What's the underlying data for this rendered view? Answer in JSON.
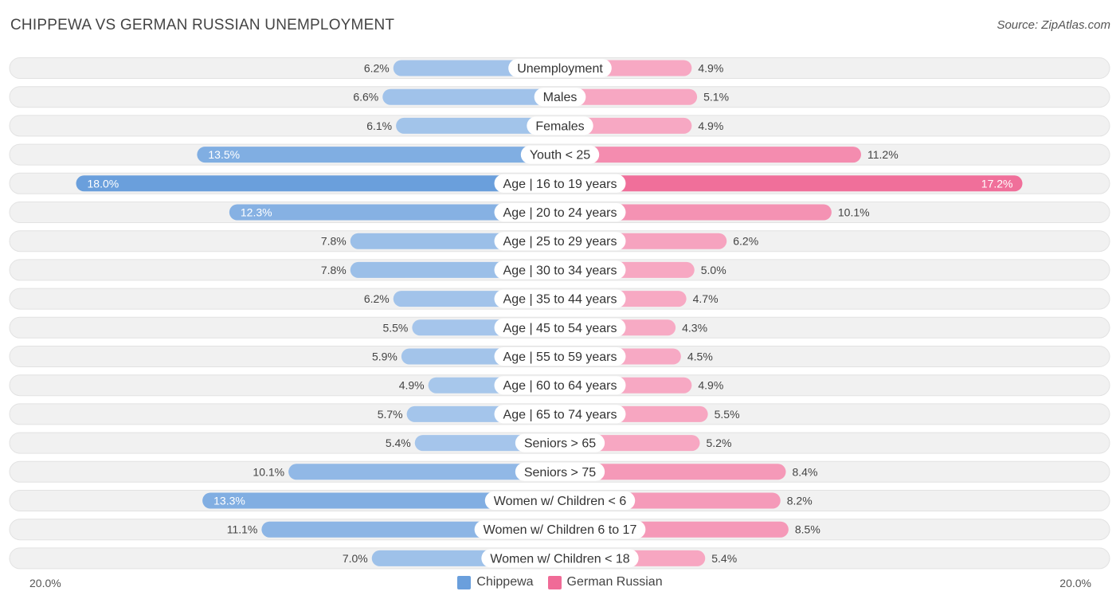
{
  "header": {
    "title": "CHIPPEWA VS GERMAN RUSSIAN UNEMPLOYMENT",
    "source": "Source: ZipAtlas.com"
  },
  "colors": {
    "left_strong": "#6a9fdc",
    "left_light": "#a9c8ec",
    "right_strong": "#f06b97",
    "right_light": "#f7aac4",
    "row_bg": "#f1f1f1",
    "row_border": "#e2e2e2"
  },
  "legend": {
    "left_label": "Chippewa",
    "right_label": "German Russian"
  },
  "axis": {
    "left_label": "20.0%",
    "right_label": "20.0%"
  },
  "chart_data": {
    "type": "bar",
    "orientation": "horizontal-diverging",
    "title": "CHIPPEWA VS GERMAN RUSSIAN UNEMPLOYMENT",
    "xlim": [
      -20,
      20
    ],
    "unit": "%",
    "categories": [
      "Unemployment",
      "Males",
      "Females",
      "Youth < 25",
      "Age | 16 to 19 years",
      "Age | 20 to 24 years",
      "Age | 25 to 29 years",
      "Age | 30 to 34 years",
      "Age | 35 to 44 years",
      "Age | 45 to 54 years",
      "Age | 55 to 59 years",
      "Age | 60 to 64 years",
      "Age | 65 to 74 years",
      "Seniors > 65",
      "Seniors > 75",
      "Women w/ Children < 6",
      "Women w/ Children 6 to 17",
      "Women w/ Children < 18"
    ],
    "series": [
      {
        "name": "Chippewa",
        "values": [
          6.2,
          6.6,
          6.1,
          13.5,
          18.0,
          12.3,
          7.8,
          7.8,
          6.2,
          5.5,
          5.9,
          4.9,
          5.7,
          5.4,
          10.1,
          13.3,
          11.1,
          7.0
        ],
        "labels": [
          "6.2%",
          "6.6%",
          "6.1%",
          "13.5%",
          "18.0%",
          "12.3%",
          "7.8%",
          "7.8%",
          "6.2%",
          "5.5%",
          "5.9%",
          "4.9%",
          "5.7%",
          "5.4%",
          "10.1%",
          "13.3%",
          "11.1%",
          "7.0%"
        ]
      },
      {
        "name": "German Russian",
        "values": [
          4.9,
          5.1,
          4.9,
          11.2,
          17.2,
          10.1,
          6.2,
          5.0,
          4.7,
          4.3,
          4.5,
          4.9,
          5.5,
          5.2,
          8.4,
          8.2,
          8.5,
          5.4
        ],
        "labels": [
          "4.9%",
          "5.1%",
          "4.9%",
          "11.2%",
          "17.2%",
          "10.1%",
          "6.2%",
          "5.0%",
          "4.7%",
          "4.3%",
          "4.5%",
          "4.9%",
          "5.5%",
          "5.2%",
          "8.4%",
          "8.2%",
          "8.5%",
          "5.4%"
        ]
      }
    ]
  }
}
